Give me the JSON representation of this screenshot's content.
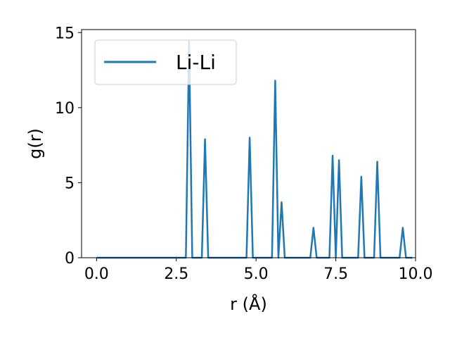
{
  "chart_data": {
    "type": "line",
    "xlabel": "r (Å)",
    "ylabel": "g(r)",
    "xlim": [
      -0.47,
      10.0
    ],
    "ylim": [
      0,
      15.2
    ],
    "xticks": [
      "0.0",
      "2.5",
      "5.0",
      "7.5",
      "10.0"
    ],
    "xtick_values": [
      0.0,
      2.5,
      5.0,
      7.5,
      10.0
    ],
    "yticks": [
      "0",
      "5",
      "10",
      "15"
    ],
    "ytick_values": [
      0,
      5,
      10,
      15
    ],
    "grid": false,
    "legend_position": "top-left",
    "series": [
      {
        "name": "Li-Li",
        "color": "#1f77b4",
        "x": [
          0.0,
          2.8,
          2.9,
          3.0,
          3.3,
          3.4,
          3.5,
          4.7,
          4.8,
          4.9,
          5.5,
          5.6,
          5.7,
          5.8,
          5.9,
          6.7,
          6.8,
          6.9,
          7.3,
          7.4,
          7.5,
          7.6,
          7.7,
          8.2,
          8.3,
          8.4,
          8.7,
          8.8,
          8.9,
          9.5,
          9.6,
          9.7,
          9.9
        ],
        "y": [
          0,
          0,
          14.4,
          0,
          0,
          7.9,
          0,
          0,
          8.0,
          0,
          0,
          11.8,
          0,
          3.7,
          0,
          0,
          2.0,
          0,
          0,
          6.8,
          0,
          6.5,
          0,
          0,
          5.4,
          0,
          0,
          6.4,
          0,
          0,
          2.0,
          0,
          0
        ]
      }
    ]
  }
}
